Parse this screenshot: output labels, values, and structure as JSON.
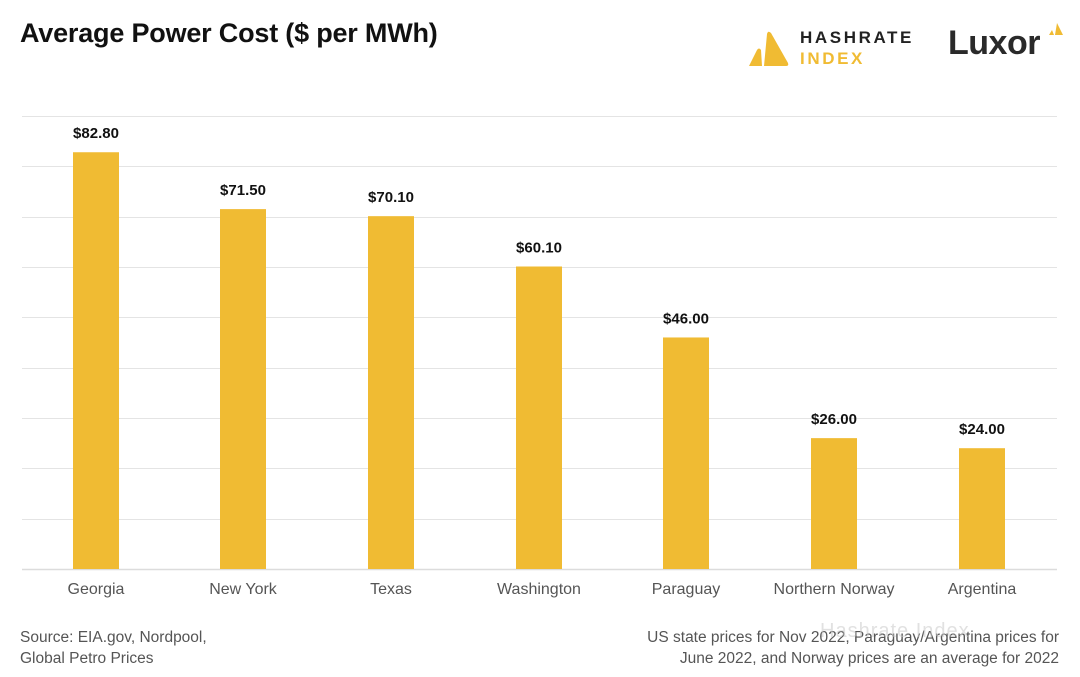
{
  "header": {
    "title": "Average Power Cost ($ per MWh)"
  },
  "logos": {
    "hashrate_index": {
      "line1": "HASHRATE",
      "line2": "INDEX",
      "icon": "hashrate-index-logo-icon"
    },
    "luxor": {
      "text": "Luxor",
      "icon": "luxor-triangle-icon"
    }
  },
  "colors": {
    "bar": "#f0bb33",
    "brand_yellow": "#f0bb33",
    "text_dark": "#111111",
    "text_muted": "#555555",
    "grid": "#e4e4e4"
  },
  "chart_data": {
    "type": "bar",
    "title": "Average Power Cost ($ per MWh)",
    "xlabel": "",
    "ylabel": "",
    "categories": [
      "Georgia",
      "New York",
      "Texas",
      "Washington",
      "Paraguay",
      "Northern Norway",
      "Argentina"
    ],
    "values": [
      82.8,
      71.5,
      70.1,
      60.1,
      46.0,
      26.0,
      24.0
    ],
    "value_labels": [
      "$82.80",
      "$71.50",
      "$70.10",
      "$60.10",
      "$46.00",
      "$26.00",
      "$24.00"
    ],
    "ylim": [
      0,
      90
    ],
    "y_grid_step": 10,
    "grid": true,
    "y_tick_labels_shown": false,
    "legend": "none"
  },
  "footer": {
    "source_line1": "Source: EIA.gov, Nordpool,",
    "source_line2": "Global Petro Prices",
    "note_line1": "US state prices for Nov 2022, Paraguay/Argentina prices for",
    "note_line2": "June 2022, and Norway prices are an average for 2022"
  },
  "watermark": {
    "text": "Hashrate Index"
  }
}
